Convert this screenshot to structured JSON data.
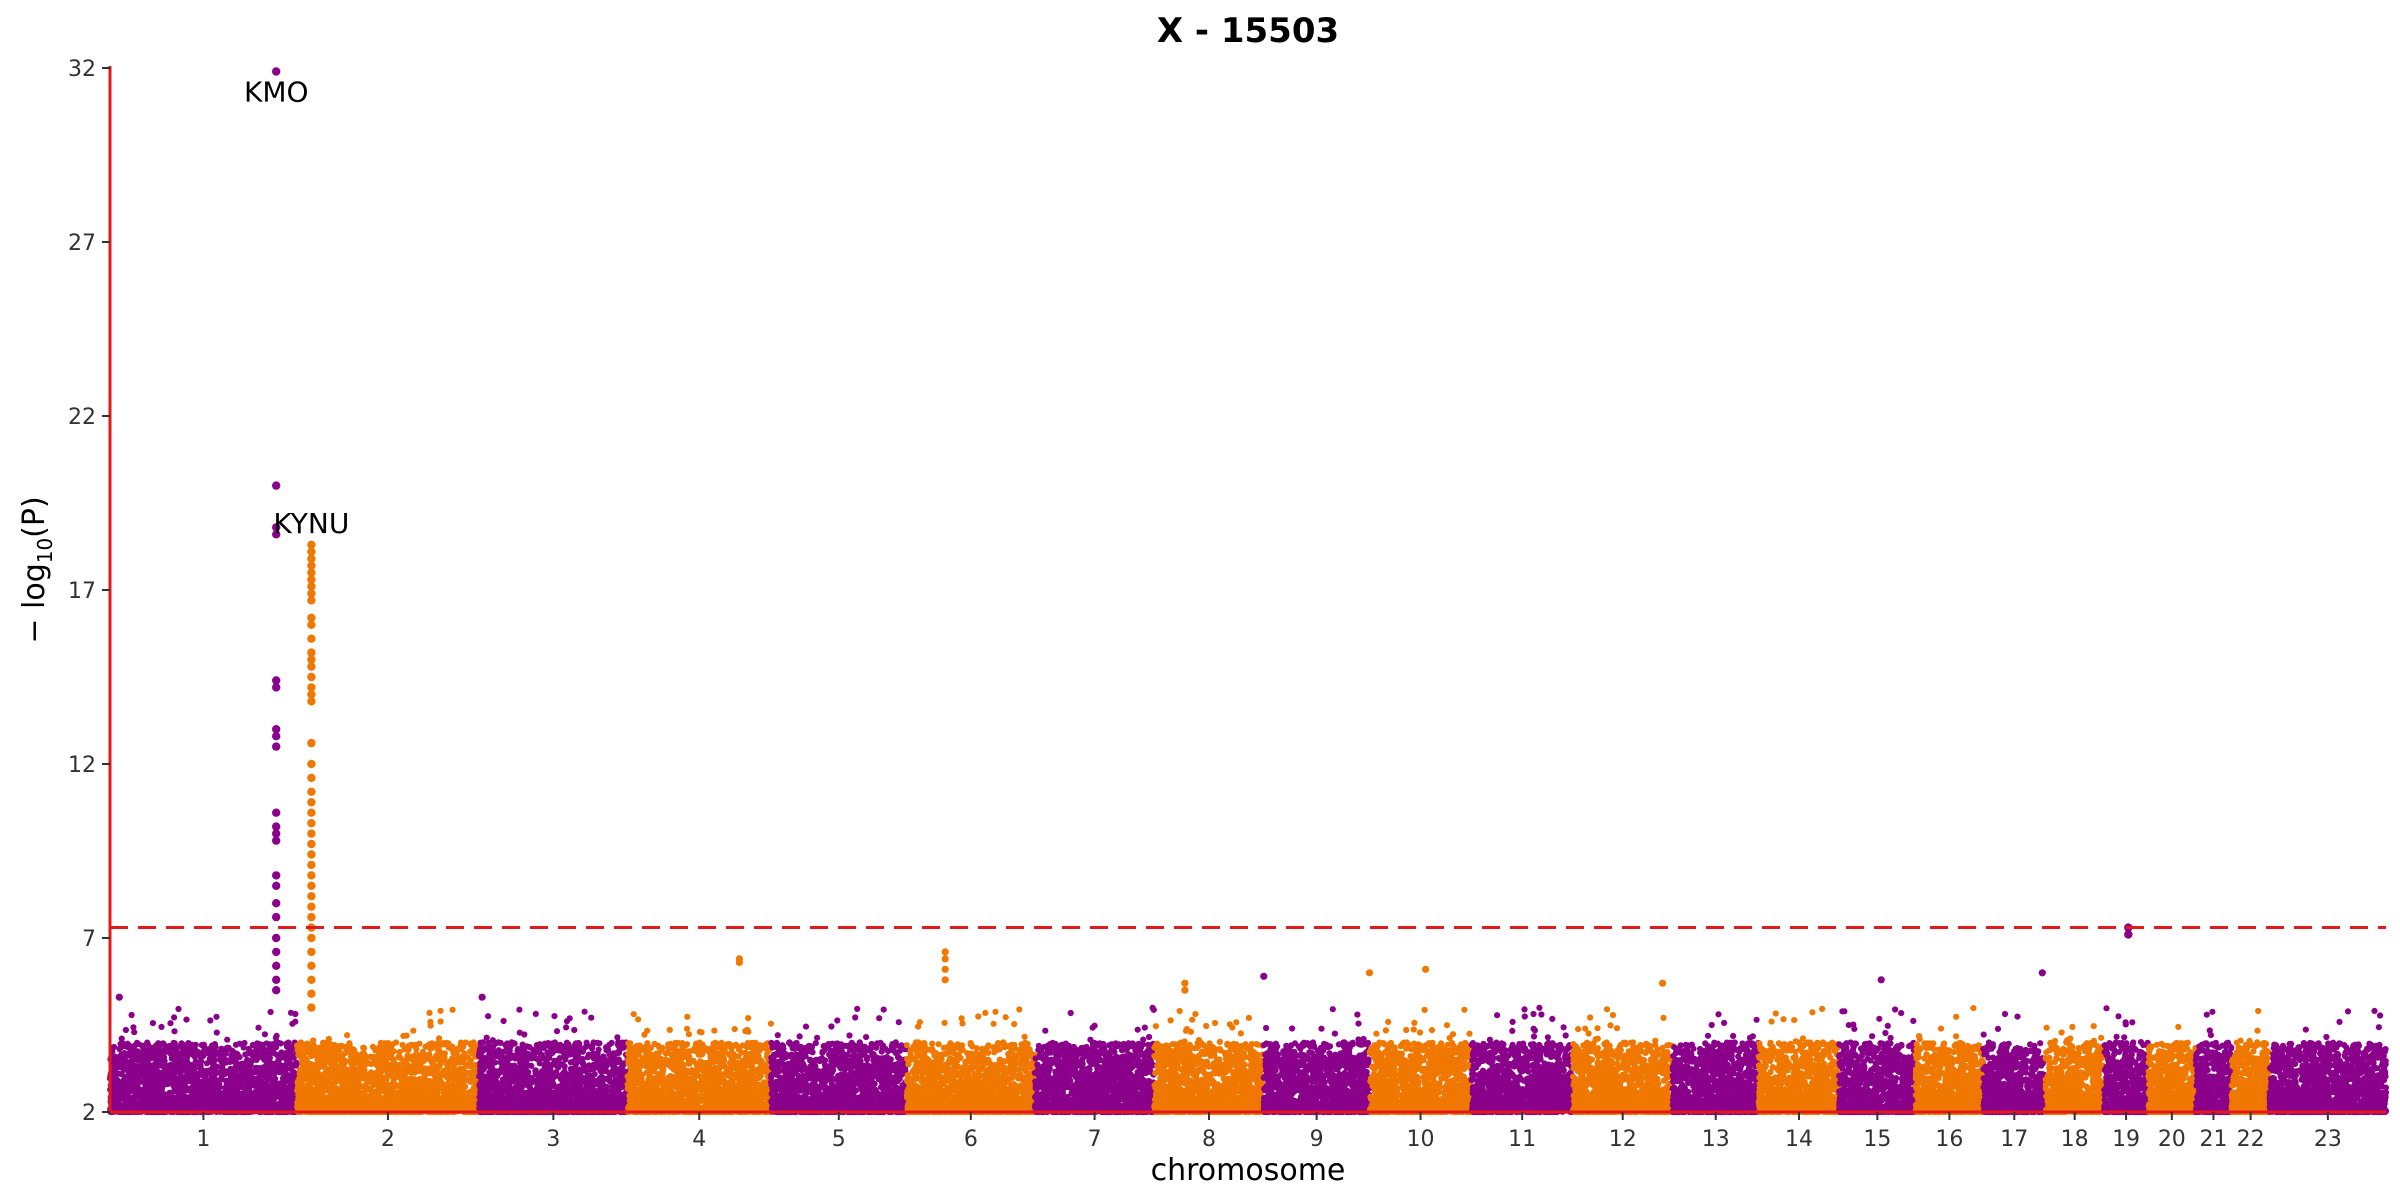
{
  "chart_data": {
    "type": "scatter",
    "title": "X - 15503",
    "xlabel": "chromosome",
    "ylabel_main": "− log",
    "ylabel_sub": "10",
    "ylabel_tail": "(P)",
    "ylim": [
      2,
      32
    ],
    "yticks": [
      2,
      7,
      12,
      17,
      22,
      27,
      32
    ],
    "significance_threshold": 7.3,
    "chromosomes": [
      {
        "label": "1",
        "length": 249
      },
      {
        "label": "2",
        "length": 243
      },
      {
        "label": "3",
        "length": 198
      },
      {
        "label": "4",
        "length": 191
      },
      {
        "label": "5",
        "length": 181
      },
      {
        "label": "6",
        "length": 171
      },
      {
        "label": "7",
        "length": 159
      },
      {
        "label": "8",
        "length": 146
      },
      {
        "label": "9",
        "length": 141
      },
      {
        "label": "10",
        "length": 136
      },
      {
        "label": "11",
        "length": 135
      },
      {
        "label": "12",
        "length": 133
      },
      {
        "label": "13",
        "length": 115
      },
      {
        "label": "14",
        "length": 107
      },
      {
        "label": "15",
        "length": 102
      },
      {
        "label": "16",
        "length": 90
      },
      {
        "label": "17",
        "length": 83
      },
      {
        "label": "18",
        "length": 78
      },
      {
        "label": "19",
        "length": 59
      },
      {
        "label": "20",
        "length": 63
      },
      {
        "label": "21",
        "length": 48
      },
      {
        "label": "22",
        "length": 51
      },
      {
        "label": "23",
        "length": 155
      }
    ],
    "peaks": [
      {
        "chrom": "1",
        "position": 0.89,
        "gene": "KMO",
        "points": [
          31.9,
          20.0,
          18.8,
          18.6,
          14.4,
          14.2,
          13.0,
          12.8,
          12.5,
          10.6,
          10.2,
          10.0,
          9.8,
          8.8,
          8.5,
          8.0,
          7.6,
          7.0,
          6.6,
          6.2,
          5.8,
          5.5
        ]
      },
      {
        "chrom": "2",
        "position": 0.08,
        "gene": "KYNU",
        "points": [
          18.3,
          18.1,
          17.9,
          17.7,
          17.5,
          17.3,
          17.1,
          16.9,
          16.7,
          16.2,
          16.0,
          15.6,
          15.2,
          15.0,
          14.8,
          14.5,
          14.2,
          14.0,
          13.8,
          12.6,
          12.0,
          11.6,
          11.2,
          10.9,
          10.6,
          10.3,
          10.0,
          9.7,
          9.4,
          9.1,
          8.8,
          8.5,
          8.2,
          7.9,
          7.6,
          7.3,
          7.0,
          6.6,
          6.2,
          5.8,
          5.4,
          5.0
        ]
      },
      {
        "chrom": "19",
        "position": 0.55,
        "gene": "",
        "points": [
          7.3,
          7.1
        ]
      }
    ],
    "secondary_hits": [
      {
        "chrom": "4",
        "position": 0.78,
        "value": 6.4
      },
      {
        "chrom": "4",
        "position": 0.78,
        "value": 6.3
      },
      {
        "chrom": "6",
        "position": 0.3,
        "value": 6.6
      },
      {
        "chrom": "6",
        "position": 0.3,
        "value": 6.4
      },
      {
        "chrom": "6",
        "position": 0.3,
        "value": 6.1
      },
      {
        "chrom": "6",
        "position": 0.3,
        "value": 5.8
      },
      {
        "chrom": "8",
        "position": 0.28,
        "value": 5.7
      },
      {
        "chrom": "8",
        "position": 0.28,
        "value": 5.5
      },
      {
        "chrom": "9",
        "position": 0.0,
        "value": 5.9
      },
      {
        "chrom": "10",
        "position": 0.0,
        "value": 6.0
      },
      {
        "chrom": "10",
        "position": 0.55,
        "value": 6.1
      },
      {
        "chrom": "12",
        "position": 0.9,
        "value": 5.7
      },
      {
        "chrom": "15",
        "position": 0.55,
        "value": 5.8
      },
      {
        "chrom": "17",
        "position": 0.95,
        "value": 6.0
      },
      {
        "chrom": "3",
        "position": 0.02,
        "value": 5.3
      },
      {
        "chrom": "1",
        "position": 0.05,
        "value": 5.3
      }
    ],
    "colors": {
      "odd": "#8b008b",
      "even": "#f07800",
      "axis": "#e31a1c",
      "threshold": "#e31a1c"
    }
  }
}
